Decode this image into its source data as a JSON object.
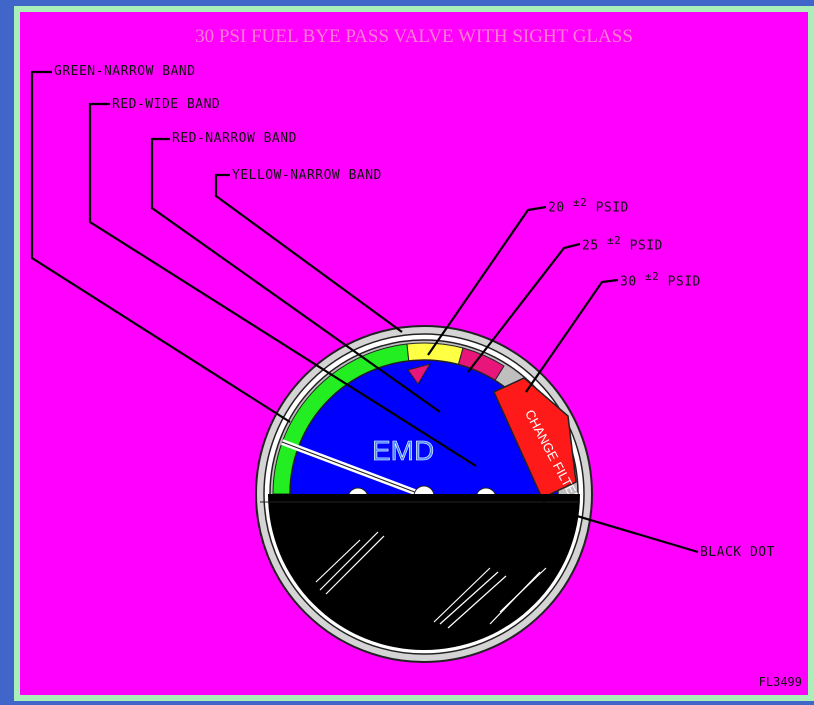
{
  "title": "30 PSI FUEL BYE PASS VALVE WITH SIGHT GLASS",
  "labels": {
    "green_narrow": "GREEN-NARROW BAND",
    "red_wide": "RED-WIDE BAND",
    "red_narrow": "RED-NARROW BAND",
    "yellow_narrow": "YELLOW-NARROW BAND",
    "psid_20": "20",
    "psid_20_tol": "±2",
    "psid_25": "25",
    "psid_25_tol": "±2",
    "psid_30": "30",
    "psid_30_tol": "±2",
    "psid_unit": "PSID",
    "black_dot": "BLACK DOT"
  },
  "gauge": {
    "face_text": "EMD",
    "warning_text": "CHANGE FILTER"
  },
  "figure_id": "FL3499",
  "colors": {
    "background": "#ff00ff",
    "frame": "#a8f0b8",
    "outer_border": "#3f66c8",
    "face": "#0000ff",
    "green_band": "#22ee22",
    "yellow_band": "#ffff44",
    "pink_band": "#e8167a",
    "red_band": "#ff1a1a",
    "bezel": "#c8c8c8",
    "sight_glass": "#000000"
  }
}
